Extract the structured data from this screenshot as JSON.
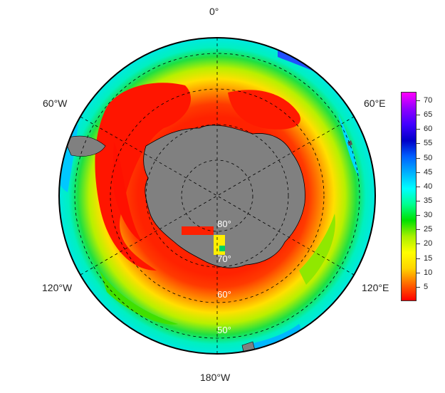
{
  "map": {
    "projection": "south-polar-stereographic",
    "meridian_labels": {
      "top": "0°",
      "upper_left": "60°W",
      "upper_right": "60°E",
      "lower_left": "120°W",
      "lower_right": "120°E",
      "bottom": "180°W"
    },
    "latitude_labels": [
      "80°",
      "70°",
      "60°",
      "50°"
    ],
    "land_color": "#808080",
    "background": "#ffffff"
  },
  "colorbar": {
    "ticks": [
      "70",
      "65",
      "60",
      "55",
      "50",
      "45",
      "40",
      "35",
      "30",
      "25",
      "20",
      "15",
      "10",
      "5"
    ],
    "min": 0,
    "max": 73,
    "colors": [
      "#ff0000",
      "#ff6600",
      "#ffd400",
      "#ffff00",
      "#a8f000",
      "#00e000",
      "#00ff90",
      "#00ffff",
      "#00b0ff",
      "#0060ff",
      "#0000c8",
      "#4000ff",
      "#9000ff",
      "#ff00ff"
    ]
  }
}
